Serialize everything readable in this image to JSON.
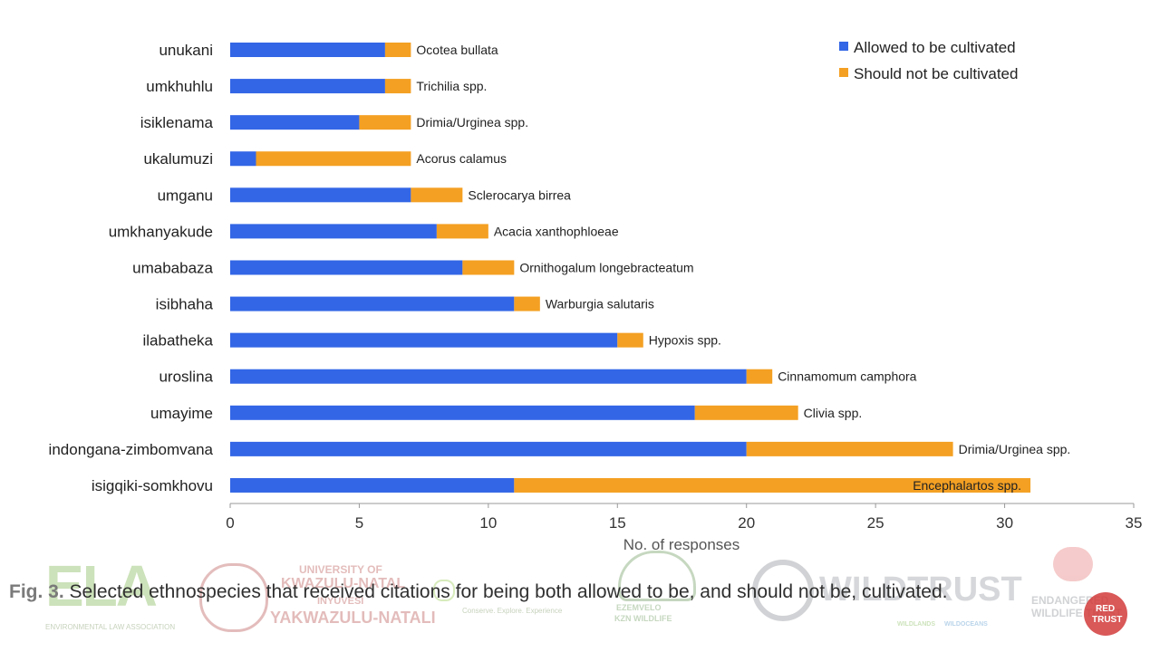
{
  "chart_data": {
    "type": "bar",
    "orientation": "horizontal",
    "stacked": true,
    "categories": [
      "unukani",
      "umkhuhlu",
      "isiklenama",
      "ukalumuzi",
      "umganu",
      "umkhanyakude",
      "umababaza",
      "isibhaha",
      "ilabatheka",
      "uroslina",
      "umayime",
      "indongana-zimbomvana",
      "isigqiki-somkhovu"
    ],
    "species": [
      "Ocotea bullata",
      "Trichilia spp.",
      "Drimia/Urginea spp.",
      "Acorus calamus",
      "Sclerocarya birrea",
      "Acacia xanthophloeae",
      "Ornithogalum longebracteatum",
      "Warburgia salutaris",
      "Hypoxis spp.",
      "Cinnamomum camphora",
      "Clivia spp.",
      "Drimia/Urginea spp.",
      "Encephalartos spp."
    ],
    "series": [
      {
        "name": "Allowed to be cultivated",
        "color": "#3366e6",
        "values": [
          6,
          6,
          5,
          1,
          7,
          8,
          9,
          11,
          15,
          20,
          18,
          20,
          11
        ]
      },
      {
        "name": "Should not be cultivated",
        "color": "#f4a023",
        "values": [
          1,
          1,
          2,
          6,
          2,
          2,
          2,
          1,
          1,
          1,
          4,
          8,
          20
        ]
      }
    ],
    "xlabel": "No. of responses",
    "xlim": [
      0,
      35
    ],
    "xticks": [
      "0",
      "5",
      "10",
      "15",
      "20",
      "25",
      "30",
      "35"
    ],
    "legend_position": "top-right"
  },
  "caption": {
    "fig": "Fig. 3.",
    "text": "Selected ethnospecies that received citations for being both allowed to be, and should not be, cultivated."
  },
  "logos": {
    "ela_mark": "ELA",
    "ela_sub": "ENVIRONMENTAL LAW ASSOCIATION",
    "ukzn_line1": "UNIVERSITY OF",
    "ukzn_line2": "KWAZULU-NATAL",
    "ukzn_line3": "INYUVESI",
    "ukzn_line4": "YAKWAZULU-NATALI",
    "conserve": "Conserve. Explore. Experience",
    "ezemvelo_line1": "EZEMVELO",
    "ezemvelo_line2": "KZN WILDLIFE",
    "wildtrust": "WILDTRUST",
    "wildlands": "WILDLANDS",
    "wildoceans": "WILDOCEANS",
    "ewt_line1": "ENDANGERED",
    "ewt_line2": "WILDLIFE TRUST",
    "ewt_stamp1": "RED",
    "ewt_stamp2": "TRUST"
  }
}
